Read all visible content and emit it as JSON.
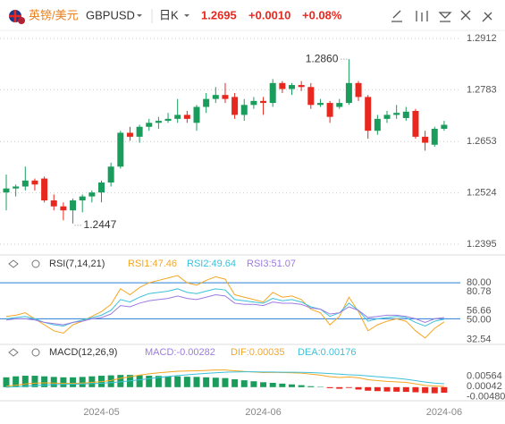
{
  "header": {
    "name": "英镑/美元",
    "symbol": "GBPUSD",
    "period": "日K",
    "price": "1.2695",
    "change": "+0.0010",
    "change_pct": "+0.08%"
  },
  "chart_data": [
    {
      "type": "candlestick",
      "up_color": "#1a9d5c",
      "down_color": "#e8281f",
      "max_label": "1.2860",
      "min_label": "1.2447",
      "ylim": [
        1.2368,
        1.293
      ],
      "yticks": [
        1.2912,
        1.2783,
        1.2653,
        1.2524,
        1.2395
      ],
      "grid": true,
      "open": [
        1.2525,
        1.2535,
        1.254,
        1.2555,
        1.256,
        1.2505,
        1.249,
        1.248,
        1.2505,
        1.2515,
        1.2525,
        1.255,
        1.259,
        1.2675,
        1.2665,
        1.269,
        1.27,
        1.2705,
        1.271,
        1.272,
        1.27,
        1.274,
        1.276,
        1.277,
        1.2765,
        1.272,
        1.2745,
        1.2755,
        1.275,
        1.28,
        1.2785,
        1.2795,
        1.279,
        1.2745,
        1.275,
        1.274,
        1.275,
        1.28,
        1.2765,
        1.268,
        1.271,
        1.272,
        1.2712,
        1.273,
        1.2665,
        1.2645,
        1.2685
      ],
      "high": [
        1.257,
        1.2545,
        1.259,
        1.256,
        1.2565,
        1.252,
        1.25,
        1.251,
        1.252,
        1.253,
        1.2555,
        1.26,
        1.268,
        1.269,
        1.2695,
        1.271,
        1.2715,
        1.2725,
        1.276,
        1.273,
        1.2745,
        1.2775,
        1.279,
        1.28,
        1.2775,
        1.276,
        1.2765,
        1.2765,
        1.281,
        1.2805,
        1.28,
        1.2805,
        1.28,
        1.276,
        1.2755,
        1.276,
        1.286,
        1.2805,
        1.277,
        1.272,
        1.273,
        1.2745,
        1.274,
        1.2735,
        1.268,
        1.269,
        1.2705
      ],
      "low": [
        1.248,
        1.2515,
        1.253,
        1.253,
        1.25,
        1.248,
        1.2455,
        1.2447,
        1.2475,
        1.25,
        1.25,
        1.254,
        1.2585,
        1.2655,
        1.265,
        1.268,
        1.2685,
        1.27,
        1.27,
        1.27,
        1.268,
        1.2725,
        1.275,
        1.275,
        1.271,
        1.2705,
        1.2735,
        1.272,
        1.274,
        1.2775,
        1.277,
        1.278,
        1.2735,
        1.274,
        1.27,
        1.2735,
        1.2745,
        1.2755,
        1.266,
        1.267,
        1.27,
        1.271,
        1.2705,
        1.266,
        1.263,
        1.264,
        1.268
      ],
      "close": [
        1.2535,
        1.254,
        1.2555,
        1.2545,
        1.2505,
        1.249,
        1.248,
        1.2505,
        1.2515,
        1.2525,
        1.255,
        1.259,
        1.2675,
        1.2665,
        1.269,
        1.27,
        1.2705,
        1.271,
        1.272,
        1.271,
        1.274,
        1.276,
        1.277,
        1.276,
        1.272,
        1.2745,
        1.2755,
        1.275,
        1.28,
        1.2785,
        1.2795,
        1.279,
        1.2745,
        1.275,
        1.2715,
        1.275,
        1.28,
        1.2765,
        1.268,
        1.271,
        1.272,
        1.2725,
        1.2728,
        1.2665,
        1.265,
        1.2685,
        1.2695
      ]
    },
    {
      "type": "line",
      "title": "RSI(7,14,21)",
      "ylim": [
        28.7,
        92
      ],
      "yticks": [
        {
          "value": 80,
          "label": "80.00"
        },
        80.78,
        56.66,
        {
          "value": 50,
          "label": "50.00"
        },
        32.54
      ],
      "ref_lines": [
        80,
        50
      ],
      "ref_color": "#2a7fd4",
      "series": [
        {
          "name": "RSI1:47.46",
          "color": "#f5a623",
          "values": [
            52,
            53,
            55,
            50,
            45,
            40,
            38,
            45,
            48,
            52,
            56,
            62,
            75,
            70,
            76,
            80,
            82,
            84,
            86,
            80,
            78,
            82,
            85,
            83,
            70,
            68,
            66,
            64,
            72,
            68,
            69,
            66,
            58,
            55,
            45,
            52,
            68,
            56,
            40,
            45,
            48,
            50,
            48,
            40,
            34,
            42,
            47.46
          ]
        },
        {
          "name": "RSI2:49.64",
          "color": "#3cc1d9",
          "values": [
            50,
            51,
            52,
            50,
            47,
            45,
            44,
            47,
            49,
            51,
            53,
            57,
            66,
            64,
            68,
            71,
            72,
            73,
            75,
            72,
            71,
            73,
            75,
            74,
            66,
            65,
            64,
            63,
            67,
            65,
            66,
            64,
            60,
            58,
            52,
            55,
            63,
            57,
            48,
            50,
            51,
            52,
            51,
            47,
            44,
            48,
            49.64
          ]
        },
        {
          "name": "RSI3:51.07",
          "color": "#9c7be0",
          "values": [
            49,
            50,
            50,
            49,
            47,
            46,
            45,
            47,
            48,
            50,
            51,
            54,
            61,
            60,
            63,
            65,
            66,
            67,
            69,
            67,
            66,
            68,
            70,
            69,
            63,
            62,
            62,
            61,
            64,
            63,
            63,
            62,
            59,
            58,
            54,
            55,
            60,
            57,
            51,
            52,
            53,
            53,
            52,
            50,
            47,
            50,
            51.07
          ]
        }
      ]
    },
    {
      "type": "macd",
      "title": "MACD(12,26,9)",
      "ylim": [
        -0.0069,
        0.014
      ],
      "yticks": [
        0.00564,
        0.00042,
        {
          "value": -0.0048,
          "label": "-0.00480"
        }
      ],
      "categories": [
        null,
        null,
        null,
        null,
        null,
        null,
        null,
        null,
        null,
        null,
        "2024-05",
        null,
        null,
        null,
        null,
        null,
        null,
        null,
        null,
        null,
        null,
        null,
        null,
        null,
        null,
        null,
        null,
        "2024-06",
        null,
        null,
        null,
        null,
        null,
        null,
        null,
        null,
        null,
        null,
        null,
        null,
        null,
        null,
        null,
        null,
        null,
        null,
        "2024-06"
      ],
      "histogram": {
        "name": "MACD:-0.00282",
        "color": "#9c7be0",
        "up_color": "#1a9d5c",
        "down_color": "#e8281f",
        "values": [
          0.005,
          0.0055,
          0.0058,
          0.0058,
          0.0055,
          0.0052,
          0.005,
          0.005,
          0.0052,
          0.0055,
          0.0058,
          0.006,
          0.0062,
          0.0062,
          0.006,
          0.0058,
          0.0057,
          0.0056,
          0.0055,
          0.0053,
          0.0052,
          0.005,
          0.0048,
          0.0046,
          0.004,
          0.0035,
          0.003,
          0.0025,
          0.0022,
          0.0018,
          0.0014,
          0.001,
          0.0005,
          0.0002,
          -0.0005,
          -0.0008,
          -0.0004,
          -0.0012,
          -0.0018,
          -0.002,
          -0.0022,
          -0.0023,
          -0.0024,
          -0.0026,
          -0.003,
          -0.0031,
          -0.00282
        ]
      },
      "series": [
        {
          "name": "DIF:0.00035",
          "color": "#f5a623",
          "values": [
            0.0005,
            0.001,
            0.0016,
            0.002,
            0.0022,
            0.0021,
            0.0019,
            0.0019,
            0.0021,
            0.0024,
            0.0028,
            0.0034,
            0.0045,
            0.0053,
            0.0061,
            0.0068,
            0.0073,
            0.0077,
            0.0081,
            0.0082,
            0.0083,
            0.0085,
            0.0087,
            0.0087,
            0.0083,
            0.008,
            0.0077,
            0.0074,
            0.0075,
            0.0074,
            0.0073,
            0.0071,
            0.0066,
            0.0061,
            0.0053,
            0.0049,
            0.0052,
            0.0048,
            0.0038,
            0.0033,
            0.0029,
            0.0027,
            0.0024,
            0.0017,
            0.0009,
            0.0006,
            0.00035
          ]
        },
        {
          "name": "DEA:0.00176",
          "color": "#3cc1d9",
          "values": [
            0,
            0.0002,
            0.0005,
            0.0008,
            0.0011,
            0.0013,
            0.0014,
            0.0015,
            0.0016,
            0.0018,
            0.002,
            0.0023,
            0.0027,
            0.0032,
            0.0037,
            0.0043,
            0.0049,
            0.0054,
            0.0059,
            0.0063,
            0.0067,
            0.007,
            0.0073,
            0.0076,
            0.0077,
            0.0078,
            0.0078,
            0.0077,
            0.0077,
            0.0076,
            0.0076,
            0.0075,
            0.0074,
            0.0072,
            0.0069,
            0.0066,
            0.0063,
            0.0061,
            0.0057,
            0.0053,
            0.0049,
            0.0045,
            0.004,
            0.0033,
            0.0026,
            0.0021,
            0.00176
          ]
        }
      ]
    }
  ]
}
